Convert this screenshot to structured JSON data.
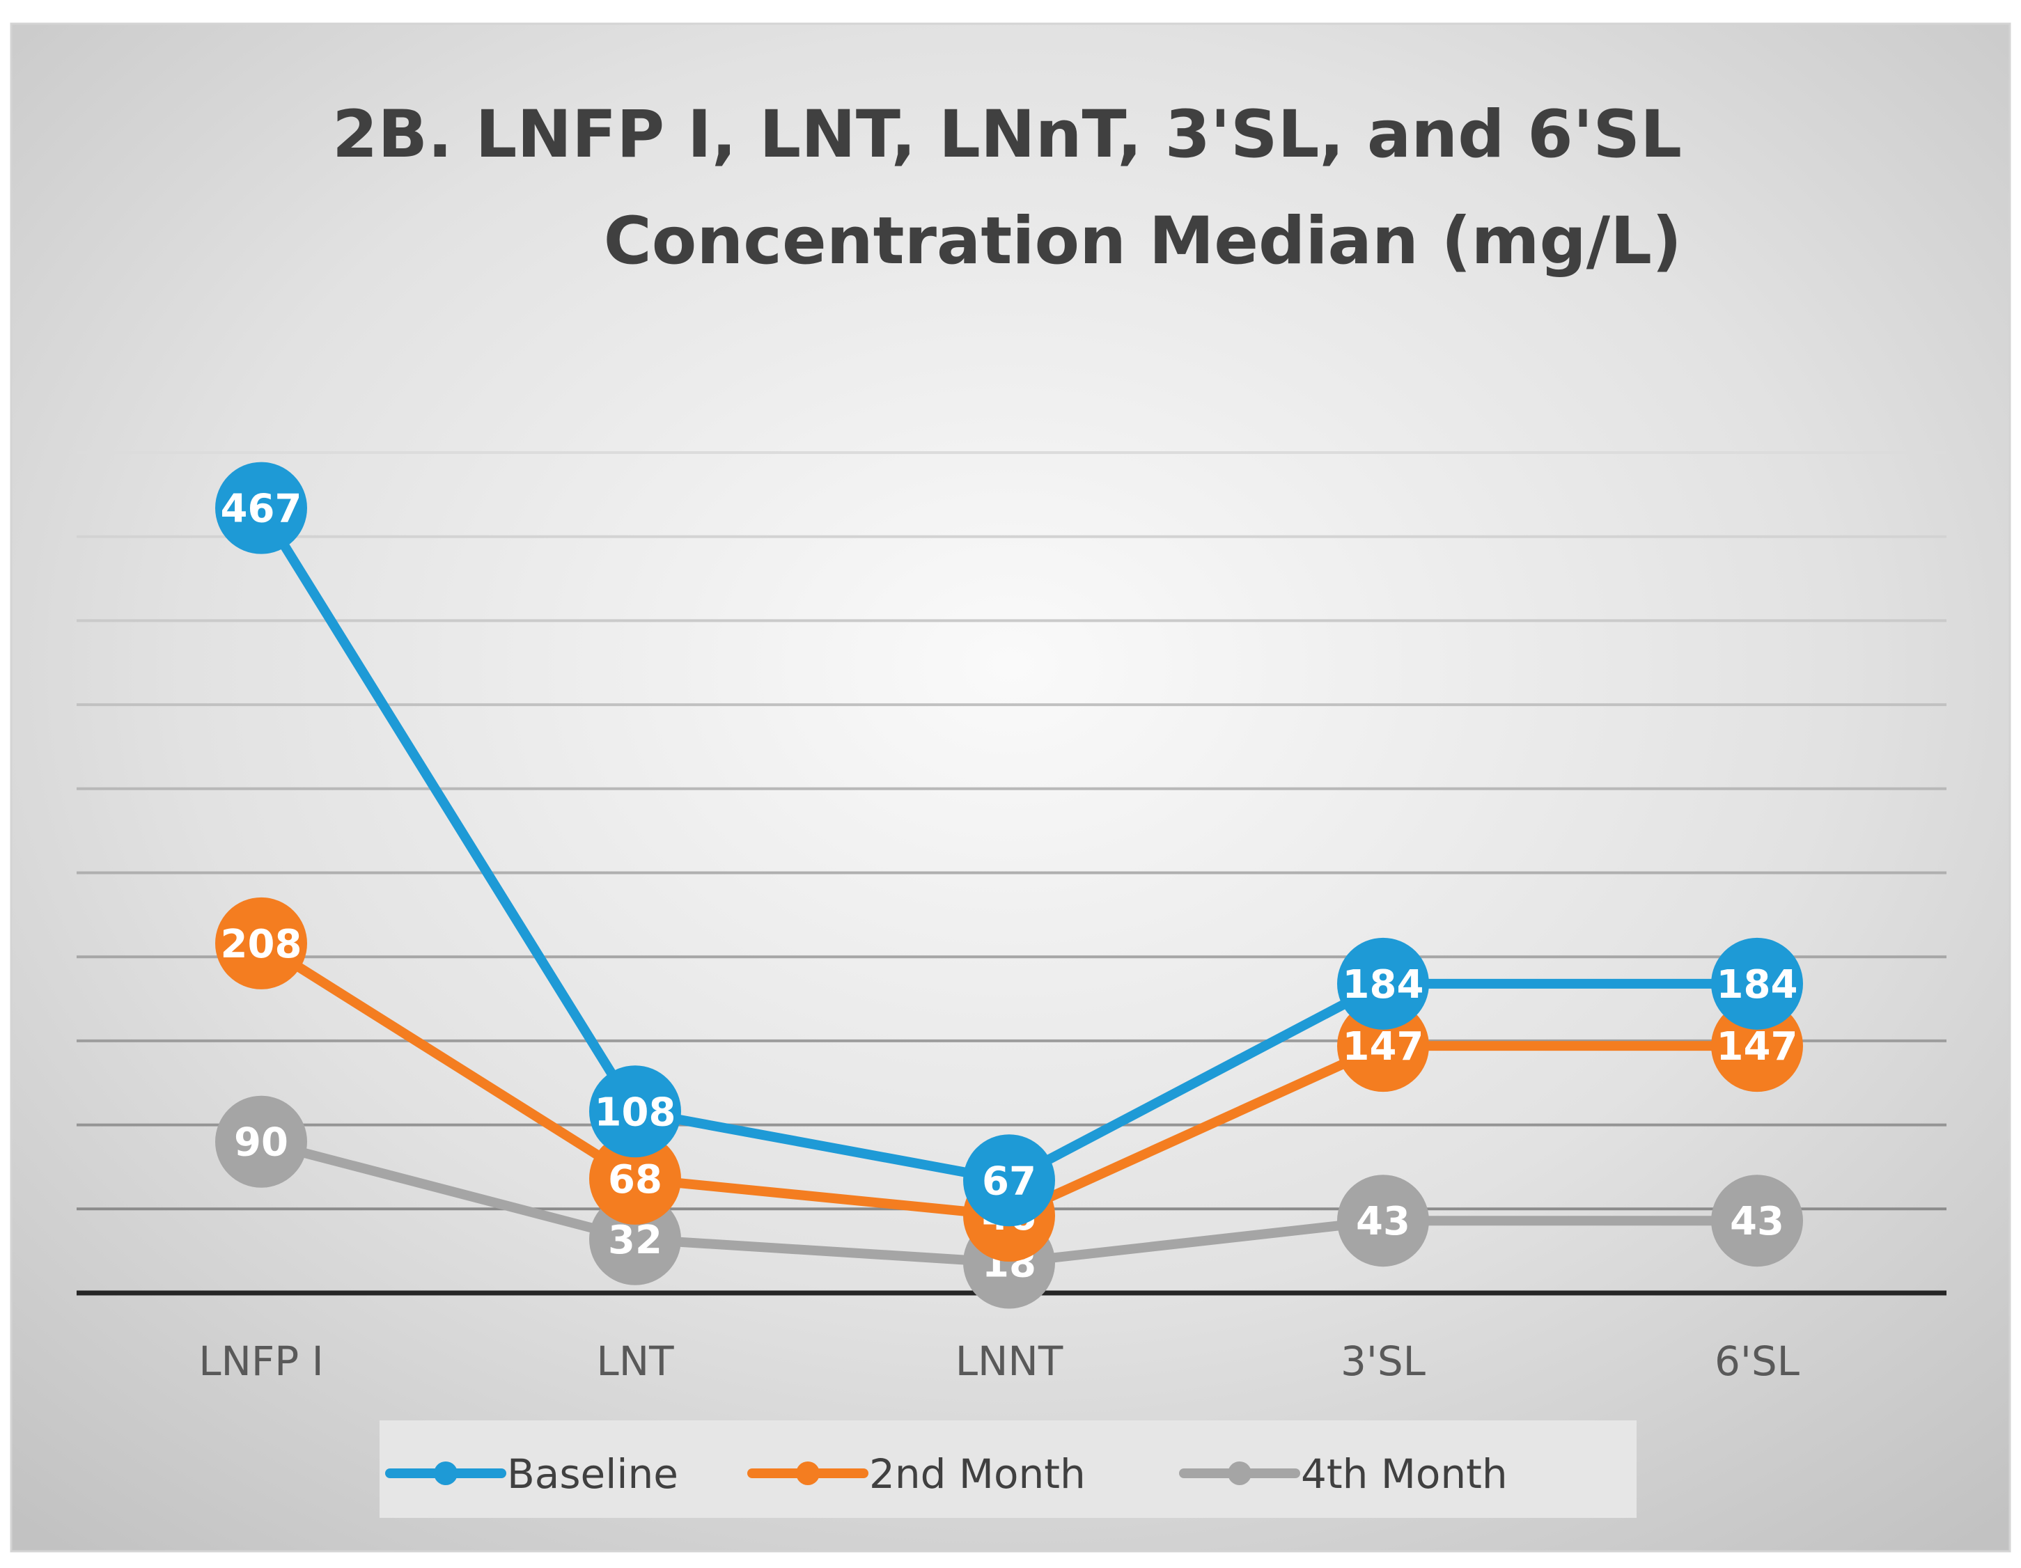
{
  "chart_data": {
    "type": "line",
    "title": "2B. LNFP I, LNT, LNnT, 3'SL, and 6'SL Concentration Median (mg/L)",
    "title_lines": [
      "2B. LNFP I, LNT, LNnT, 3'SL, and 6'SL",
      "Concentration Median (mg/L)"
    ],
    "categories": [
      "LNFP I",
      "LNT",
      "LNNT",
      "3'SL",
      "6'SL"
    ],
    "series": [
      {
        "name": "Baseline",
        "color": "#1e9ad6",
        "values": [
          467,
          108,
          67,
          184,
          184
        ]
      },
      {
        "name": "2nd Month",
        "color": "#f47d20",
        "values": [
          208,
          68,
          46,
          147,
          147
        ]
      },
      {
        "name": "4th Month",
        "color": "#a5a5a5",
        "values": [
          90,
          32,
          18,
          43,
          43
        ]
      }
    ],
    "ylim": [
      0,
      500
    ],
    "xlabel": "",
    "ylabel": "",
    "grid": true,
    "legend_position": "bottom",
    "data_labels": true
  },
  "colors": {
    "background_light": "#ffffff",
    "background_dark": "#c4c4c4",
    "gridline": "#a6a6a6",
    "axis": "#262626"
  }
}
